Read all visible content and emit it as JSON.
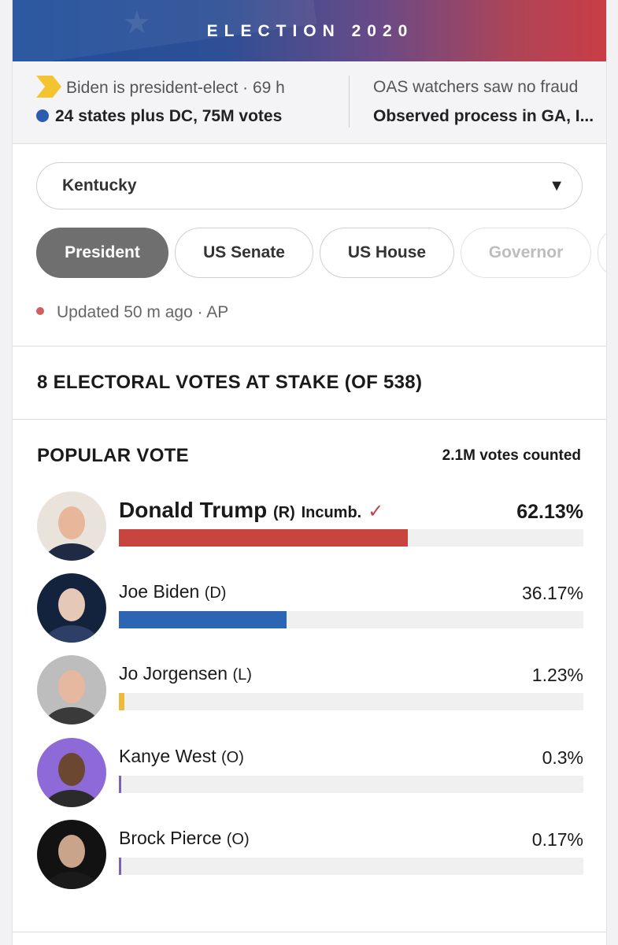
{
  "banner": {
    "title": "ELECTION 2020"
  },
  "ticker": [
    {
      "headline": "Biden is president-elect · 69 h",
      "detail": "24 states plus DC, 75M votes"
    },
    {
      "headline": "OAS watchers saw no fraud",
      "detail": "Observed process in GA, I..."
    }
  ],
  "state_select": {
    "value": "Kentucky"
  },
  "tabs": [
    {
      "label": "President",
      "state": "active"
    },
    {
      "label": "US Senate",
      "state": "normal"
    },
    {
      "label": "US House",
      "state": "normal"
    },
    {
      "label": "Governor",
      "state": "disabled"
    }
  ],
  "updated": "Updated 50 m ago · AP",
  "electoral": "8 ELECTORAL VOTES AT STAKE (OF 538)",
  "popular_vote": {
    "title": "POPULAR VOTE",
    "count": "2.1M votes counted",
    "candidates": [
      {
        "name": "Donald Trump",
        "party": "(R)",
        "extra": "Incumb.",
        "pct_label": "62.13%",
        "pct": 62.13,
        "color": "#c8443f",
        "winner": true,
        "avatar_colors": [
          "#e9e3dc",
          "#1f2a44",
          "#e8b79a"
        ]
      },
      {
        "name": "Joe Biden",
        "party": "(D)",
        "extra": "",
        "pct_label": "36.17%",
        "pct": 36.17,
        "color": "#2c65b4",
        "winner": false,
        "avatar_colors": [
          "#14233d",
          "#2d3f66",
          "#e6c8b6"
        ]
      },
      {
        "name": "Jo Jorgensen",
        "party": "(L)",
        "extra": "",
        "pct_label": "1.23%",
        "pct": 1.23,
        "color": "#f1b93b",
        "winner": false,
        "avatar_colors": [
          "#bdbdbd",
          "#3a3a3a",
          "#e6b8a0"
        ]
      },
      {
        "name": "Kanye West",
        "party": "(O)",
        "extra": "",
        "pct_label": "0.3%",
        "pct": 0.3,
        "color": "#7a63b5",
        "winner": false,
        "avatar_colors": [
          "#8e6ad8",
          "#2b2b2b",
          "#6b4630"
        ]
      },
      {
        "name": "Brock Pierce",
        "party": "(O)",
        "extra": "",
        "pct_label": "0.17%",
        "pct": 0.17,
        "color": "#7a63b5",
        "winner": false,
        "avatar_colors": [
          "#121212",
          "#1a1a1a",
          "#c9a48a"
        ]
      }
    ]
  }
}
